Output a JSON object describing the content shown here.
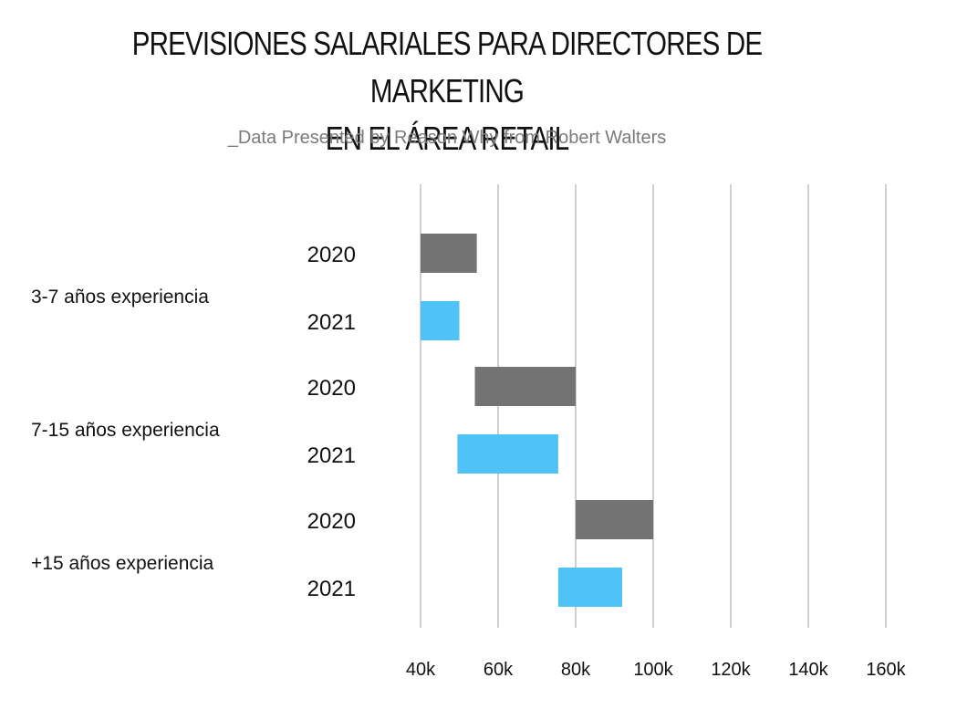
{
  "title_line1": "PREVISIONES SALARIALES PARA DIRECTORES DE MARKETING",
  "title_line2": "EN EL ÁREA RETAIL",
  "subtitle": "_Data Presented by Reason Why from Robert Walters",
  "colors": {
    "2020": "#737373",
    "2021": "#4fc3f7",
    "grid": "#cfcfcf"
  },
  "chart_data": {
    "type": "bar",
    "orientation": "horizontal-floating",
    "title": "PREVISIONES SALARIALES PARA DIRECTORES DE MARKETING EN EL ÁREA RETAIL",
    "subtitle": "_Data Presented by Reason Why from Robert Walters",
    "xlim": [
      40000,
      160000
    ],
    "xticks": [
      "40k",
      "60k",
      "80k",
      "100k",
      "120k",
      "140k",
      "160k"
    ],
    "xtick_values": [
      40000,
      60000,
      80000,
      100000,
      120000,
      140000,
      160000
    ],
    "grid": true,
    "groups": [
      {
        "label": "3-7 años experiencia",
        "bars": [
          {
            "year": "2020",
            "min": 40000,
            "max": 54500
          },
          {
            "year": "2021",
            "min": 40000,
            "max": 50000
          }
        ]
      },
      {
        "label": "7-15 años experiencia",
        "bars": [
          {
            "year": "2020",
            "min": 54000,
            "max": 80000
          },
          {
            "year": "2021",
            "min": 49500,
            "max": 75500
          }
        ]
      },
      {
        "label": "+15 años experiencia",
        "bars": [
          {
            "year": "2020",
            "min": 80000,
            "max": 100000
          },
          {
            "year": "2021",
            "min": 75500,
            "max": 92000
          }
        ]
      }
    ]
  }
}
